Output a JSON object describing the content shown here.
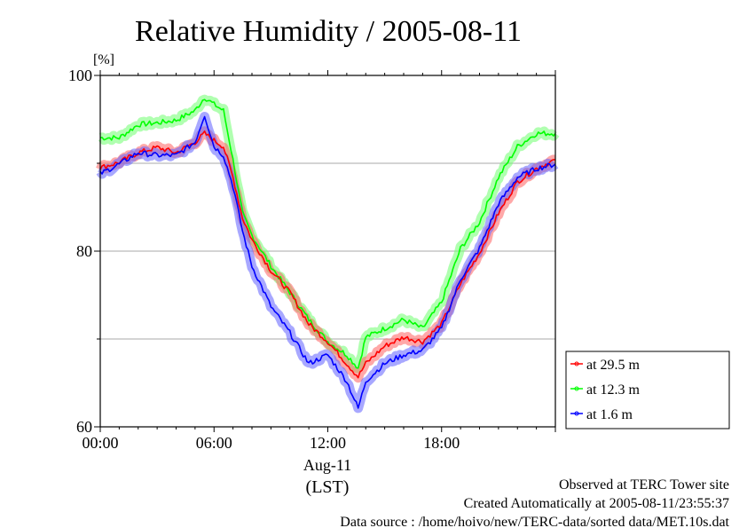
{
  "chart_data": {
    "type": "line",
    "title": "Relative Humidity / 2005-08-11",
    "ylabel": "[%]",
    "xlabel": "(LST)",
    "date_label": "Aug-11",
    "ylim": [
      60,
      100
    ],
    "xlim": [
      0,
      24
    ],
    "yticks": [
      60,
      80,
      100
    ],
    "ytick_labels": [
      "60",
      "80",
      "100"
    ],
    "ygrid": [
      70,
      80,
      90
    ],
    "xticks": [
      0,
      6,
      12,
      18
    ],
    "xtick_labels": [
      "00:00",
      "06:00",
      "12:00",
      "18:00"
    ],
    "legend_position": "right-bottom-outside",
    "x": [
      0,
      1,
      2,
      3,
      4,
      5,
      5.5,
      6,
      6.5,
      7,
      7.5,
      8,
      9,
      10,
      11,
      12,
      13,
      13.6,
      14,
      15,
      16,
      17,
      18,
      19,
      20,
      21,
      22,
      23,
      24
    ],
    "series": [
      {
        "name": "at 29.5 m",
        "color": "#ff0000",
        "band": "#ff6060",
        "values": [
          89.5,
          90.1,
          91.2,
          91.8,
          91.2,
          92.4,
          93.4,
          92.6,
          91.9,
          88.4,
          83.8,
          81.3,
          77.8,
          75.3,
          71.7,
          69.7,
          67.2,
          65.7,
          67.2,
          69.2,
          70.2,
          69.7,
          71.7,
          76.3,
          79.8,
          84.3,
          87.9,
          89.4,
          90.4
        ]
      },
      {
        "name": "at 12.3 m",
        "color": "#00ff00",
        "band": "#70ff70",
        "values": [
          92.9,
          92.9,
          94.4,
          94.6,
          94.9,
          96.0,
          97.5,
          96.7,
          96.0,
          90.4,
          84.3,
          81.8,
          78.3,
          75.3,
          72.2,
          69.7,
          68.2,
          66.7,
          70.2,
          71.2,
          72.2,
          71.2,
          74.2,
          80.3,
          83.3,
          88.4,
          91.9,
          93.4,
          93.4
        ]
      },
      {
        "name": "at 1.6 m",
        "color": "#0000ff",
        "band": "#6060ff",
        "values": [
          88.8,
          89.9,
          91.2,
          90.9,
          90.9,
          92.4,
          95.5,
          91.9,
          90.9,
          87.4,
          82.3,
          78.3,
          73.7,
          70.7,
          67.2,
          68.2,
          65.2,
          62.1,
          65.2,
          67.2,
          68.2,
          68.7,
          71.2,
          76.8,
          80.3,
          85.4,
          88.4,
          89.4,
          89.9
        ]
      }
    ]
  },
  "footer": {
    "line1": "Observed at TERC Tower site",
    "line2": "Created Automatically at 2005-08-11/23:55:37",
    "line3": "Data source : /home/hoivo/new/TERC-data/sorted  data/MET.10s.dat"
  }
}
